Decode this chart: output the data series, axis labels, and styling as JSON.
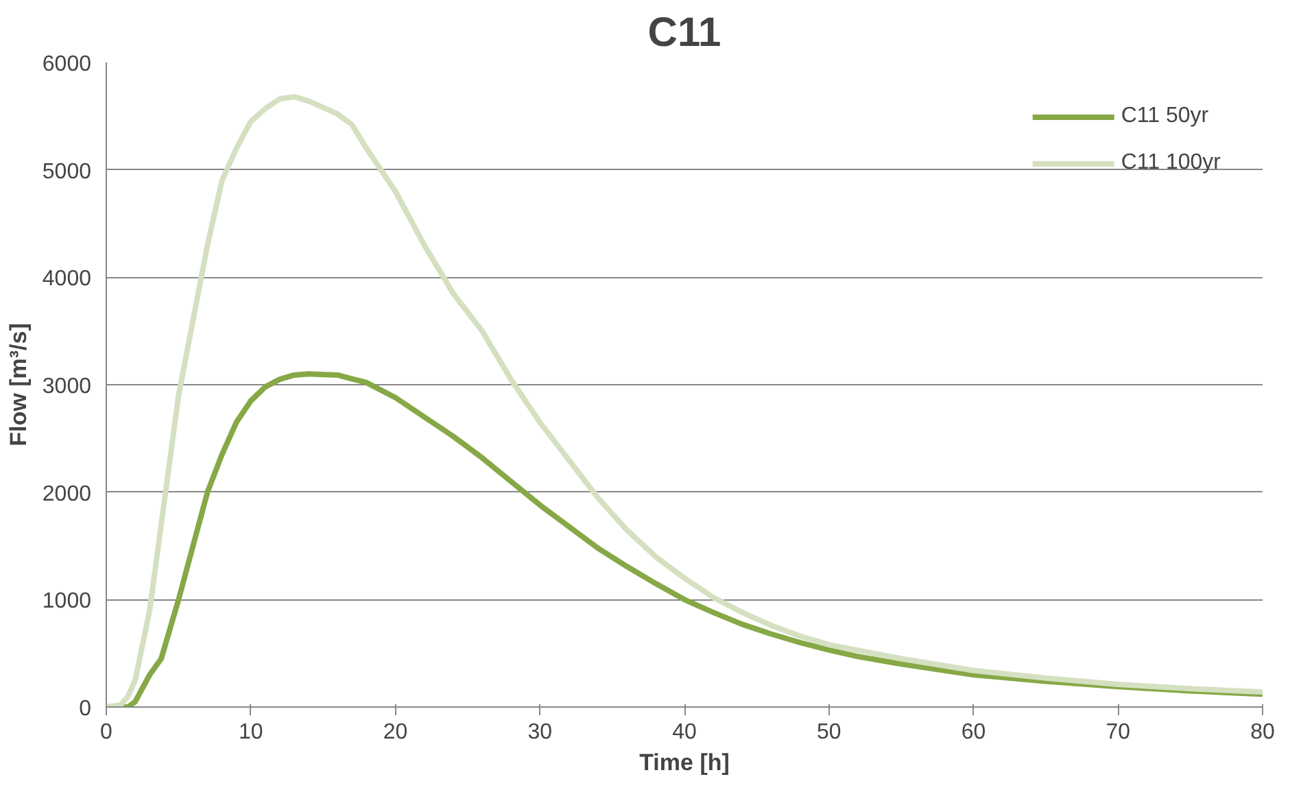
{
  "chart_data": {
    "type": "line",
    "title": "C11",
    "xlabel": "Time [h]",
    "ylabel": "Flow [m³/s]",
    "xlim": [
      0,
      80
    ],
    "xticks": [
      0,
      10,
      20,
      30,
      40,
      50,
      60,
      70,
      80
    ],
    "ylim": [
      0,
      6000
    ],
    "yticks": [
      0,
      1000,
      2000,
      3000,
      4000,
      5000,
      6000
    ],
    "grid": "y",
    "legend": "top right",
    "line_style": "solid",
    "series": [
      {
        "name": "C11 50yr",
        "color": "#86a846",
        "x": [
          0,
          1,
          1.5,
          2,
          3,
          3.8,
          5,
          6,
          7,
          8,
          9,
          10,
          11,
          12,
          13,
          14,
          16,
          18,
          20,
          22,
          24,
          26,
          28,
          30,
          32,
          34,
          36,
          38,
          40,
          42,
          44,
          46,
          48,
          50,
          52,
          55,
          60,
          65,
          70,
          75,
          80
        ],
        "values": [
          0,
          0,
          0,
          50,
          300,
          450,
          1000,
          1500,
          2000,
          2350,
          2650,
          2850,
          2980,
          3050,
          3090,
          3100,
          3090,
          3020,
          2880,
          2700,
          2520,
          2320,
          2100,
          1880,
          1680,
          1480,
          1310,
          1150,
          1000,
          880,
          770,
          680,
          600,
          530,
          470,
          400,
          300,
          240,
          190,
          150,
          120
        ]
      },
      {
        "name": "C11 100yr",
        "color": "#d4e0c0",
        "x": [
          0,
          1,
          1.5,
          2,
          3,
          4,
          5,
          6,
          7,
          8,
          9,
          10,
          11,
          12,
          13,
          14,
          16,
          17,
          18,
          20,
          22,
          24,
          26,
          28,
          30,
          32,
          34,
          36,
          38,
          40,
          42,
          44,
          46,
          48,
          50,
          55,
          60,
          65,
          70,
          75,
          80
        ],
        "values": [
          0,
          20,
          100,
          250,
          900,
          1900,
          2900,
          3600,
          4300,
          4900,
          5200,
          5450,
          5570,
          5660,
          5680,
          5640,
          5520,
          5420,
          5200,
          4800,
          4300,
          3850,
          3500,
          3050,
          2650,
          2300,
          1950,
          1650,
          1400,
          1200,
          1020,
          880,
          760,
          660,
          580,
          450,
          340,
          270,
          210,
          170,
          140
        ]
      }
    ]
  }
}
